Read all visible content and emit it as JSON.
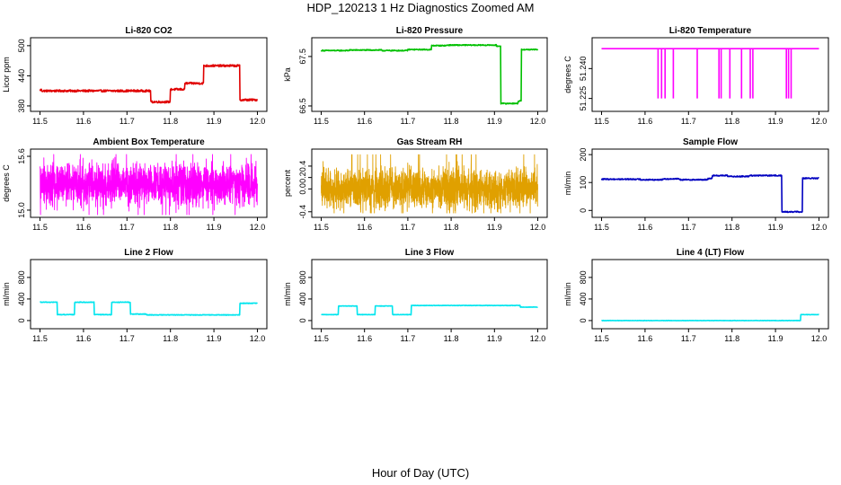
{
  "figure": {
    "title": "HDP_120213  1 Hz Diagnostics Zoomed AM",
    "xlabel": "Hour of Day (UTC)"
  },
  "chart_data": [
    {
      "type": "line",
      "title": "Li-820 CO2",
      "ylabel": "Licor ppm",
      "color": "#e00000",
      "xlim": [
        11.5,
        12.0
      ],
      "ylim": [
        375,
        510
      ],
      "xticks": [
        "11.5",
        "11.6",
        "11.7",
        "11.8",
        "11.9",
        "12.0"
      ],
      "yticks": [
        {
          "v": 380,
          "label": "380"
        },
        {
          "v": 440,
          "label": "440"
        },
        {
          "v": 500,
          "label": "500"
        }
      ],
      "steps": [
        [
          11.5,
          412
        ],
        [
          11.504,
          410
        ],
        [
          11.755,
          388
        ],
        [
          11.8,
          413
        ],
        [
          11.833,
          425
        ],
        [
          11.876,
          460
        ],
        [
          11.96,
          392
        ],
        [
          12.0,
          392
        ]
      ],
      "noise": 2
    },
    {
      "type": "line",
      "title": "Li-820 Pressure",
      "ylabel": "kPa",
      "color": "#00c000",
      "xlim": [
        11.5,
        12.0
      ],
      "ylim": [
        66.45,
        67.82
      ],
      "xticks": [
        "11.5",
        "11.6",
        "11.7",
        "11.8",
        "11.9",
        "12.0"
      ],
      "yticks": [
        {
          "v": 66.5,
          "label": "66.5"
        },
        {
          "v": 67.5,
          "label": "67.5"
        }
      ],
      "steps": [
        [
          11.5,
          67.62
        ],
        [
          11.565,
          67.63
        ],
        [
          11.64,
          67.62
        ],
        [
          11.7,
          67.64
        ],
        [
          11.755,
          67.72
        ],
        [
          11.79,
          67.73
        ],
        [
          11.905,
          67.71
        ],
        [
          11.915,
          66.55
        ],
        [
          11.955,
          66.6
        ],
        [
          11.962,
          67.64
        ],
        [
          12.0,
          67.64
        ]
      ],
      "noise": 0.01
    },
    {
      "type": "line",
      "title": "Li-820 Temperature",
      "ylabel": "degrees C",
      "color": "#ff00ff",
      "xlim": [
        11.5,
        12.0
      ],
      "ylim": [
        51.22,
        51.254
      ],
      "xticks": [
        "11.5",
        "11.6",
        "11.7",
        "11.8",
        "11.9",
        "12.0"
      ],
      "yticks": [
        {
          "v": 51.225,
          "label": "51.225"
        },
        {
          "v": 51.24,
          "label": "51.240"
        }
      ],
      "base": 51.25,
      "spikes": [
        11.63,
        11.638,
        11.646,
        11.665,
        11.72,
        11.77,
        11.775,
        11.795,
        11.822,
        11.842,
        11.848,
        11.925,
        11.93,
        11.936
      ],
      "spike_value": 51.225
    },
    {
      "type": "line",
      "title": "Ambient Box Temperature",
      "ylabel": "degrees C",
      "color": "#ff00ff",
      "xlim": [
        11.5,
        12.0
      ],
      "ylim": [
        14.95,
        15.65
      ],
      "xticks": [
        "11.5",
        "11.6",
        "11.7",
        "11.8",
        "11.9",
        "12.0"
      ],
      "yticks": [
        {
          "v": 15.0,
          "label": "15.0"
        },
        {
          "v": 15.6,
          "label": "15.6"
        }
      ],
      "noise_band": [
        14.95,
        15.62
      ],
      "center": 15.28
    },
    {
      "type": "line",
      "title": "Gas Stream RH",
      "ylabel": "percent",
      "color": "#e0a000",
      "xlim": [
        11.5,
        12.0
      ],
      "ylim": [
        -0.45,
        0.65
      ],
      "xticks": [
        "11.5",
        "11.6",
        "11.7",
        "11.8",
        "11.9",
        "12.0"
      ],
      "yticks": [
        {
          "v": -0.4,
          "label": "-0.4"
        },
        {
          "v": 0.0,
          "label": "0.0"
        },
        {
          "v": 0.2,
          "label": "0.2"
        },
        {
          "v": 0.4,
          "label": "0.4"
        }
      ],
      "noise_band": [
        -0.42,
        0.6
      ],
      "center": 0.0
    },
    {
      "type": "line",
      "title": "Sample Flow",
      "ylabel": "ml/min",
      "color": "#0000c0",
      "xlim": [
        11.5,
        12.0
      ],
      "ylim": [
        -15,
        210
      ],
      "xticks": [
        "11.5",
        "11.6",
        "11.7",
        "11.8",
        "11.9",
        "12.0"
      ],
      "yticks": [
        {
          "v": 0,
          "label": "0"
        },
        {
          "v": 100,
          "label": "100"
        },
        {
          "v": 200,
          "label": "200"
        }
      ],
      "steps": [
        [
          11.5,
          112
        ],
        [
          11.59,
          110
        ],
        [
          11.64,
          113
        ],
        [
          11.68,
          110
        ],
        [
          11.745,
          115
        ],
        [
          11.755,
          125
        ],
        [
          11.79,
          122
        ],
        [
          11.84,
          125
        ],
        [
          11.915,
          -5
        ],
        [
          11.955,
          -5
        ],
        [
          11.962,
          115
        ],
        [
          12.0,
          115
        ]
      ],
      "noise": 2
    },
    {
      "type": "line",
      "title": "Line 2 Flow",
      "ylabel": "ml/min",
      "color": "#00e5ee",
      "xlim": [
        11.5,
        12.0
      ],
      "ylim": [
        -100,
        1080
      ],
      "xticks": [
        "11.5",
        "11.6",
        "11.7",
        "11.8",
        "11.9",
        "12.0"
      ],
      "yticks": [
        {
          "v": 0,
          "label": "0"
        },
        {
          "v": 400,
          "label": "400"
        },
        {
          "v": 800,
          "label": "800"
        }
      ],
      "steps": [
        [
          11.5,
          340
        ],
        [
          11.54,
          110
        ],
        [
          11.58,
          340
        ],
        [
          11.625,
          110
        ],
        [
          11.665,
          340
        ],
        [
          11.708,
          120
        ],
        [
          11.745,
          105
        ],
        [
          11.96,
          320
        ],
        [
          12.0,
          320
        ]
      ],
      "noise": 6
    },
    {
      "type": "line",
      "title": "Line 3 Flow",
      "ylabel": "ml/min",
      "color": "#00e5ee",
      "xlim": [
        11.5,
        12.0
      ],
      "ylim": [
        -100,
        1080
      ],
      "xticks": [
        "11.5",
        "11.6",
        "11.7",
        "11.8",
        "11.9",
        "12.0"
      ],
      "yticks": [
        {
          "v": 0,
          "label": "0"
        },
        {
          "v": 400,
          "label": "400"
        },
        {
          "v": 800,
          "label": "800"
        }
      ],
      "steps": [
        [
          11.5,
          110
        ],
        [
          11.54,
          270
        ],
        [
          11.583,
          110
        ],
        [
          11.625,
          270
        ],
        [
          11.665,
          110
        ],
        [
          11.708,
          280
        ],
        [
          11.96,
          250
        ],
        [
          12.0,
          250
        ]
      ],
      "noise": 4
    },
    {
      "type": "line",
      "title": "Line 4 (LT) Flow",
      "ylabel": "ml/min",
      "color": "#00e5ee",
      "xlim": [
        11.5,
        12.0
      ],
      "ylim": [
        -100,
        1080
      ],
      "xticks": [
        "11.5",
        "11.6",
        "11.7",
        "11.8",
        "11.9",
        "12.0"
      ],
      "yticks": [
        {
          "v": 0,
          "label": "0"
        },
        {
          "v": 400,
          "label": "400"
        },
        {
          "v": 800,
          "label": "800"
        }
      ],
      "steps": [
        [
          11.5,
          0
        ],
        [
          11.953,
          0
        ],
        [
          11.958,
          110
        ],
        [
          12.0,
          110
        ]
      ],
      "noise": 3
    }
  ]
}
